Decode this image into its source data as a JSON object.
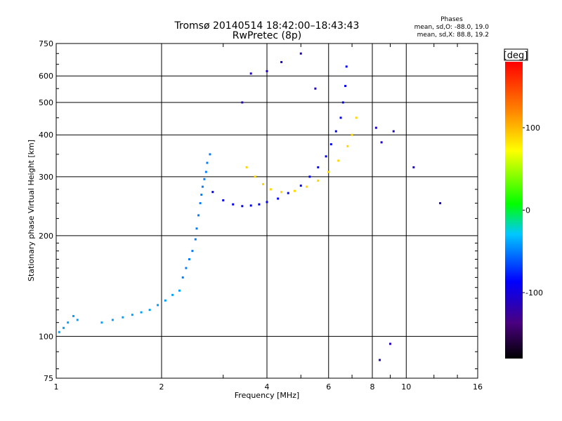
{
  "chart_data": {
    "type": "scatter",
    "title": "Tromsø 20140514 18:42:00–18:43:43",
    "subtitle": "RwPretec (8p)",
    "info": {
      "heading": "Phases",
      "line1": "mean, sd,O: -88.0, 19.0",
      "line2": "mean, sd,X:  88.8, 19.2"
    },
    "xlabel": "Frequency [MHz]",
    "ylabel": "Stationary phase Virtual Height [km]",
    "x_scale": "log",
    "y_scale": "log",
    "xlim": [
      1,
      16
    ],
    "ylim": [
      75,
      750
    ],
    "x_ticks": [
      1,
      2,
      4,
      6,
      8,
      10,
      16
    ],
    "x_tick_labels": [
      "1",
      "2",
      "4",
      "6",
      "8",
      "10",
      "16"
    ],
    "y_ticks": [
      75,
      100,
      200,
      300,
      400,
      500,
      600,
      750
    ],
    "y_tick_labels": [
      "75",
      "100",
      "200",
      "300",
      "400",
      "500",
      "600",
      "750"
    ],
    "grid": true,
    "colorbar": {
      "label": "[deg]",
      "range": [
        -180,
        180
      ],
      "ticks": [
        100,
        0,
        -100
      ],
      "tick_labels": [
        "100",
        "0",
        "-100"
      ]
    },
    "series": [
      {
        "color_group": "lower trace (cyan)",
        "phase_deg": -40,
        "x": [
          1.02,
          1.05,
          1.08,
          1.12,
          1.15,
          1.35,
          1.45,
          1.55,
          1.65,
          1.75,
          1.85,
          1.95,
          2.05,
          2.15,
          2.25
        ],
        "y": [
          103,
          106,
          110,
          115,
          112,
          110,
          112,
          114,
          116,
          118,
          120,
          124,
          128,
          133,
          137
        ]
      },
      {
        "color_group": "rising E/F1 trace",
        "phase_deg": -50,
        "x": [
          2.3,
          2.35,
          2.4,
          2.45,
          2.5,
          2.52,
          2.55,
          2.58,
          2.6,
          2.62,
          2.65,
          2.68,
          2.7,
          2.75
        ],
        "y": [
          150,
          160,
          170,
          180,
          195,
          210,
          230,
          250,
          265,
          280,
          295,
          310,
          330,
          350
        ]
      },
      {
        "color_group": "O-mode F trace (blue)",
        "phase_deg": -88,
        "x": [
          2.8,
          3.0,
          3.2,
          3.4,
          3.6,
          3.8,
          4.0,
          4.3,
          4.6,
          5.0,
          5.3,
          5.6,
          5.9,
          6.1,
          6.3,
          6.5,
          6.6,
          6.7,
          6.75
        ],
        "y": [
          270,
          255,
          248,
          245,
          246,
          248,
          252,
          258,
          268,
          282,
          300,
          320,
          345,
          375,
          410,
          450,
          500,
          560,
          640
        ]
      },
      {
        "color_group": "X-mode F trace (yellow)",
        "phase_deg": 88,
        "x": [
          3.5,
          3.7,
          3.9,
          4.1,
          4.4,
          4.8,
          5.2,
          5.6,
          6.0,
          6.4,
          6.8,
          7.0,
          7.2
        ],
        "y": [
          320,
          300,
          285,
          275,
          270,
          272,
          280,
          292,
          310,
          335,
          370,
          400,
          450
        ]
      },
      {
        "color_group": "scattered echoes",
        "phase_deg": -110,
        "x": [
          3.4,
          3.6,
          4.0,
          4.4,
          5.0,
          5.5,
          8.2,
          8.5,
          9.2,
          10.5,
          12.5,
          9.0,
          8.4
        ],
        "y": [
          500,
          610,
          620,
          660,
          700,
          550,
          420,
          380,
          410,
          320,
          250,
          95,
          85
        ]
      }
    ]
  }
}
